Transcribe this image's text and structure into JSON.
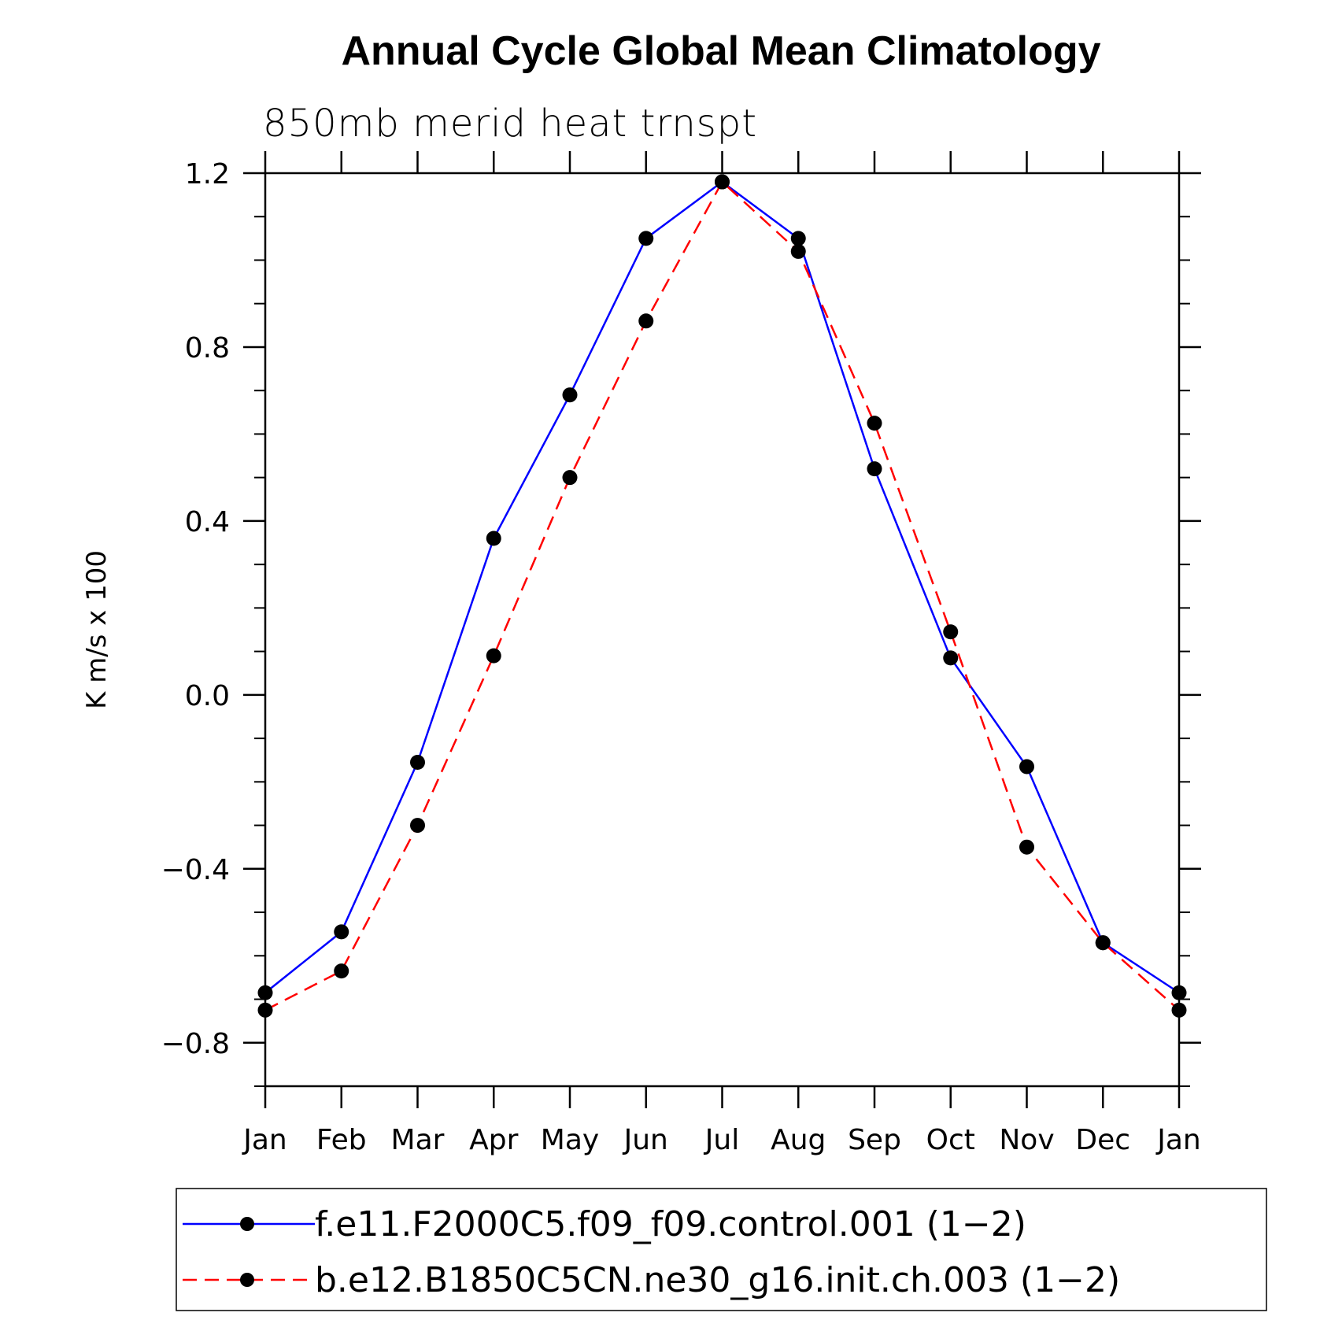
{
  "chart_data": {
    "type": "line",
    "title": "Annual Cycle Global Mean Climatology",
    "subtitle": "850mb merid heat trnspt",
    "xlabel": "",
    "ylabel": "K m/s x 100",
    "categories": [
      "Jan",
      "Feb",
      "Mar",
      "Apr",
      "May",
      "Jun",
      "Jul",
      "Aug",
      "Sep",
      "Oct",
      "Nov",
      "Dec",
      "Jan"
    ],
    "ylim": [
      -0.9,
      1.2
    ],
    "yticks": [
      -0.8,
      -0.4,
      0.0,
      0.4,
      0.8,
      1.2
    ],
    "ytick_labels": [
      "−0.8",
      "−0.4",
      "0.0",
      "0.4",
      "0.8",
      "1.2"
    ],
    "minor_ytick_step": 0.1,
    "grid": false,
    "legend_position": "bottom",
    "series": [
      {
        "name": "f.e11.F2000C5.f09_f09.control.001 (1−2)",
        "color": "#0000ff",
        "dash": "solid",
        "marker": "filled-circle",
        "values": [
          -0.685,
          -0.545,
          -0.155,
          0.36,
          0.69,
          1.05,
          1.18,
          1.05,
          0.52,
          0.085,
          -0.165,
          -0.57,
          -0.685
        ]
      },
      {
        "name": "b.e12.B1850C5CN.ne30_g16.init.ch.003 (1−2)",
        "color": "#ff0000",
        "dash": "dashed",
        "marker": "filled-circle",
        "values": [
          -0.725,
          -0.635,
          -0.3,
          0.09,
          0.5,
          0.86,
          1.18,
          1.02,
          0.625,
          0.145,
          -0.35,
          -0.57,
          -0.725
        ]
      }
    ]
  }
}
